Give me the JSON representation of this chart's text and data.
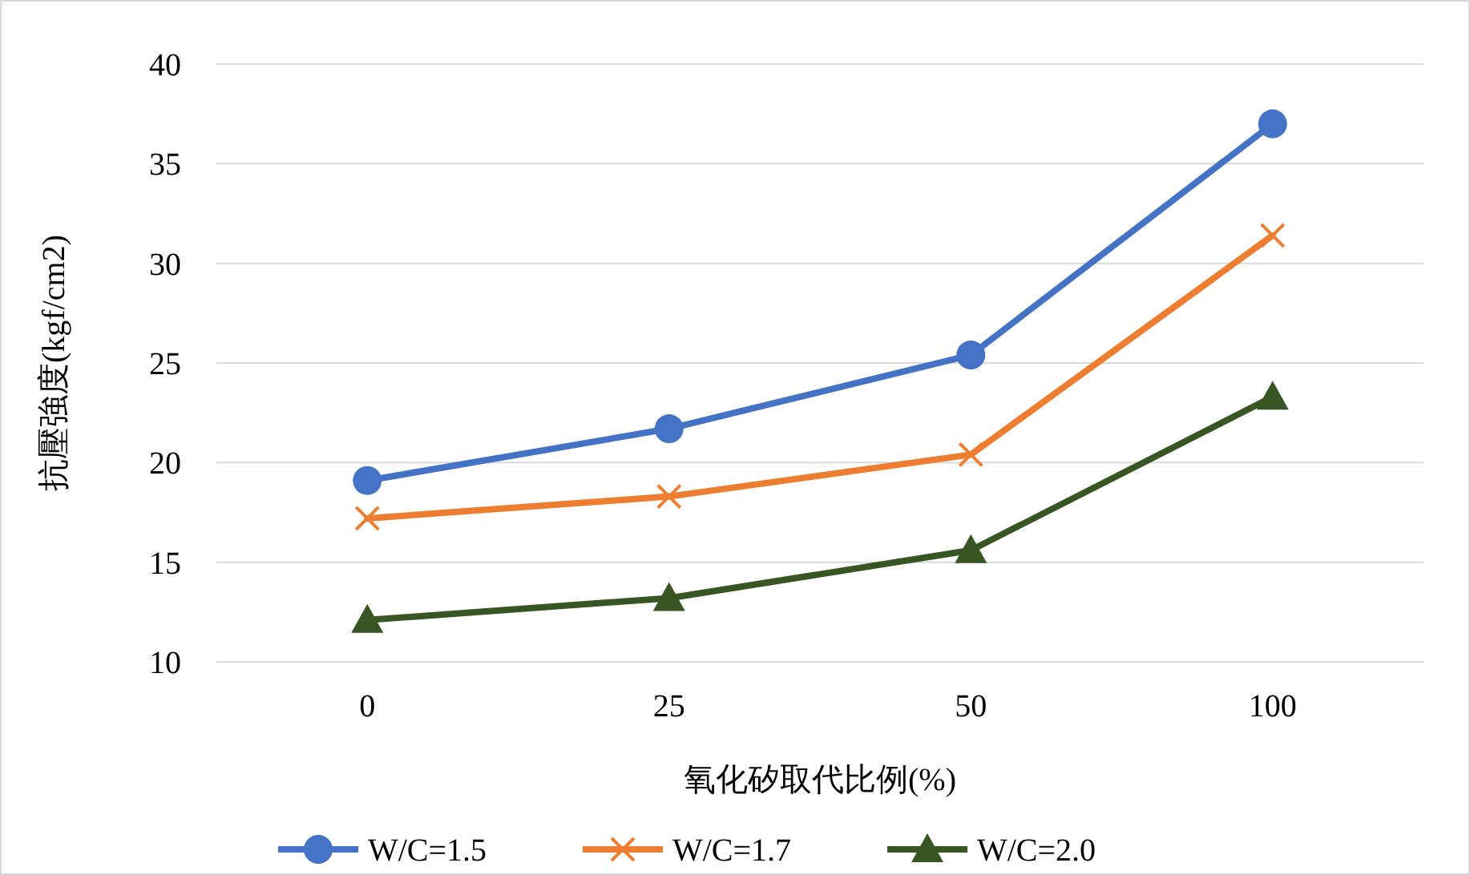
{
  "chart_data": {
    "type": "line",
    "xlabel": "氧化矽取代比例(%)",
    "ylabel": "抗壓強度(kgf/cm2)",
    "categories": [
      "0",
      "25",
      "50",
      "100"
    ],
    "ylim": [
      10,
      40
    ],
    "yticks": [
      10,
      15,
      20,
      25,
      30,
      35,
      40
    ],
    "grid": "y",
    "legend": "bottom",
    "line_style": "solid",
    "series": [
      {
        "name": "W/C=1.5",
        "color": "#4472c4",
        "marker": "circle",
        "values": [
          19.1,
          21.7,
          25.4,
          37.0
        ]
      },
      {
        "name": "W/C=1.7",
        "color": "#ed7d31",
        "marker": "cross",
        "values": [
          17.2,
          18.3,
          20.4,
          31.4
        ]
      },
      {
        "name": "W/C=2.0",
        "color": "#375623",
        "marker": "triangle",
        "values": [
          12.1,
          13.2,
          15.6,
          23.3
        ]
      }
    ]
  }
}
